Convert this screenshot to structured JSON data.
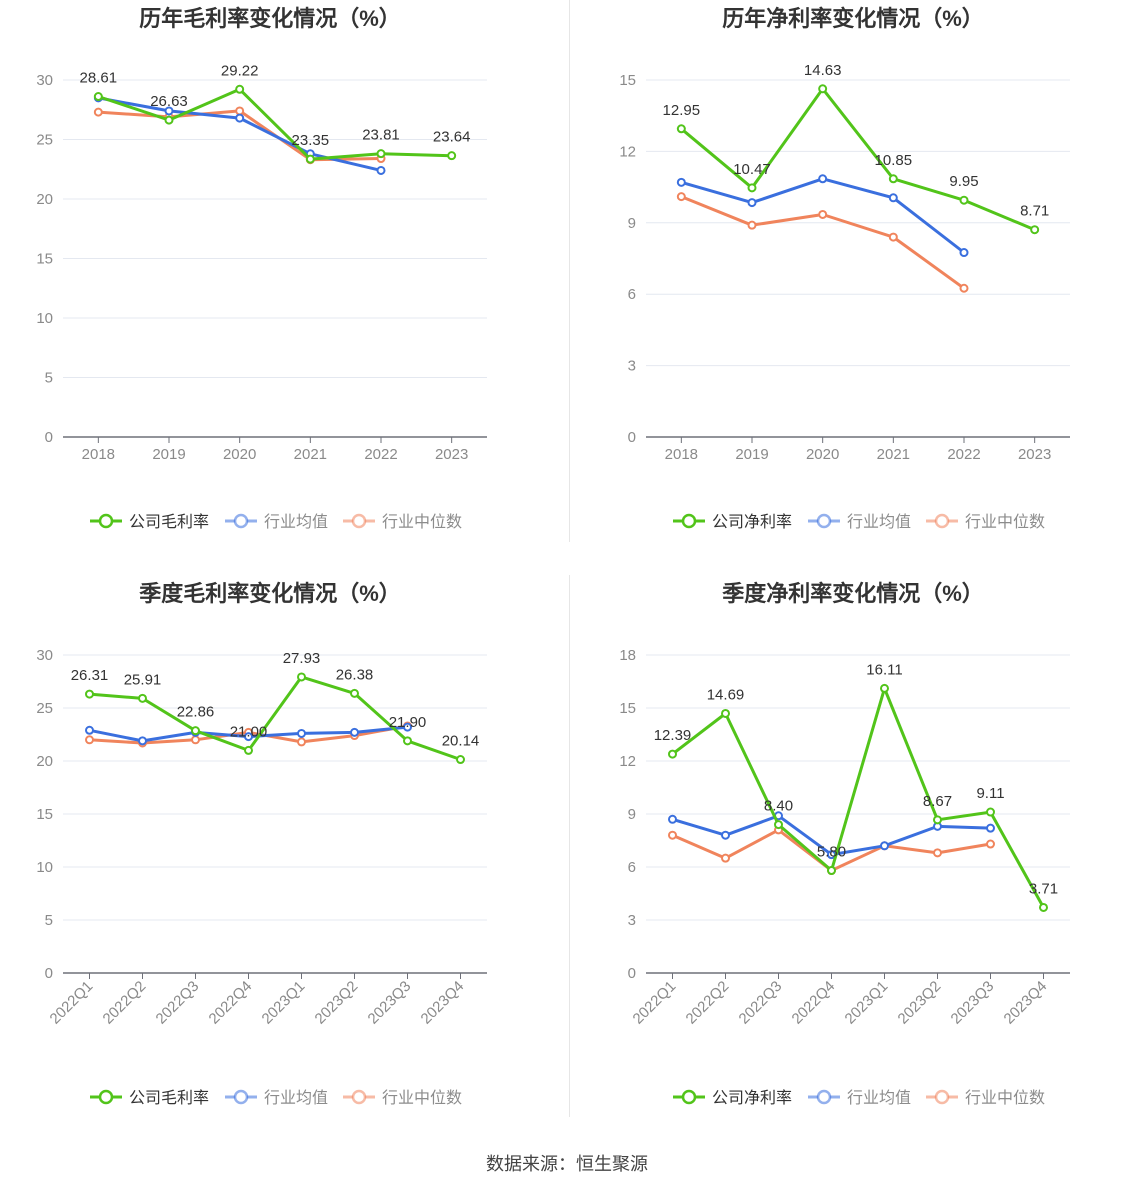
{
  "colors": {
    "company": "#52c41a",
    "avg": "#3a6fde",
    "median": "#f0845c"
  },
  "source": "数据来源：恒生聚源",
  "chart_data": [
    {
      "type": "line",
      "title": "历年毛利率变化情况（%）",
      "categories": [
        "2018",
        "2019",
        "2020",
        "2021",
        "2022",
        "2023"
      ],
      "ylim": [
        0,
        30
      ],
      "yticks": [
        0,
        5,
        10,
        15,
        20,
        25,
        30
      ],
      "grid": true,
      "legend": "bottom",
      "series": [
        {
          "name": "公司毛利率",
          "key": "company",
          "values": [
            28.61,
            26.63,
            29.22,
            23.35,
            23.81,
            23.64
          ],
          "labels": [
            "28.61",
            "26.63",
            "29.22",
            "23.35",
            "23.81",
            "23.64"
          ]
        },
        {
          "name": "行业均值",
          "key": "avg",
          "values": [
            28.5,
            27.4,
            26.8,
            23.8,
            22.4,
            null
          ]
        },
        {
          "name": "行业中位数",
          "key": "median",
          "values": [
            27.3,
            26.9,
            27.4,
            23.3,
            23.4,
            null
          ]
        }
      ]
    },
    {
      "type": "line",
      "title": "历年净利率变化情况（%）",
      "categories": [
        "2018",
        "2019",
        "2020",
        "2021",
        "2022",
        "2023"
      ],
      "ylim": [
        0,
        15
      ],
      "yticks": [
        0,
        3,
        6,
        9,
        12,
        15
      ],
      "grid": true,
      "legend": "bottom",
      "series": [
        {
          "name": "公司净利率",
          "key": "company",
          "values": [
            12.95,
            10.47,
            14.63,
            10.85,
            9.95,
            8.71
          ],
          "labels": [
            "12.95",
            "10.47",
            "14.63",
            "10.85",
            "9.95",
            "8.71"
          ]
        },
        {
          "name": "行业均值",
          "key": "avg",
          "values": [
            10.7,
            9.85,
            10.85,
            10.05,
            7.75,
            null
          ]
        },
        {
          "name": "行业中位数",
          "key": "median",
          "values": [
            10.1,
            8.9,
            9.35,
            8.4,
            6.25,
            null
          ]
        }
      ]
    },
    {
      "type": "line",
      "title": "季度毛利率变化情况（%）",
      "categories": [
        "2022Q1",
        "2022Q2",
        "2022Q3",
        "2022Q4",
        "2023Q1",
        "2023Q2",
        "2023Q3",
        "2023Q4"
      ],
      "ylim": [
        0,
        30
      ],
      "yticks": [
        0,
        5,
        10,
        15,
        20,
        25,
        30
      ],
      "grid": true,
      "legend": "bottom",
      "series": [
        {
          "name": "公司毛利率",
          "key": "company",
          "values": [
            26.31,
            25.91,
            22.86,
            21.0,
            27.93,
            26.38,
            21.9,
            20.14
          ],
          "labels": [
            "26.31",
            "25.91",
            "22.86",
            "21.00",
            "27.93",
            "26.38",
            "21.90",
            "20.14"
          ]
        },
        {
          "name": "行业均值",
          "key": "avg",
          "values": [
            22.9,
            21.9,
            22.7,
            22.3,
            22.6,
            22.7,
            23.2,
            null
          ]
        },
        {
          "name": "行业中位数",
          "key": "median",
          "values": [
            22.0,
            21.7,
            22.0,
            22.7,
            21.8,
            22.4,
            23.3,
            null
          ]
        }
      ]
    },
    {
      "type": "line",
      "title": "季度净利率变化情况（%）",
      "categories": [
        "2022Q1",
        "2022Q2",
        "2022Q3",
        "2022Q4",
        "2023Q1",
        "2023Q2",
        "2023Q3",
        "2023Q4"
      ],
      "ylim": [
        0,
        18
      ],
      "yticks": [
        0,
        3,
        6,
        9,
        12,
        15,
        18
      ],
      "grid": true,
      "legend": "bottom",
      "series": [
        {
          "name": "公司净利率",
          "key": "company",
          "values": [
            12.39,
            14.69,
            8.4,
            5.8,
            16.11,
            8.67,
            9.11,
            3.71
          ],
          "labels": [
            "12.39",
            "14.69",
            "8.40",
            "5.80",
            "16.11",
            "8.67",
            "9.11",
            "3.71"
          ]
        },
        {
          "name": "行业均值",
          "key": "avg",
          "values": [
            8.7,
            7.8,
            8.9,
            6.7,
            7.2,
            8.3,
            8.2,
            null
          ]
        },
        {
          "name": "行业中位数",
          "key": "median",
          "values": [
            7.8,
            6.5,
            8.1,
            5.8,
            7.2,
            6.8,
            7.3,
            null
          ]
        }
      ]
    }
  ]
}
